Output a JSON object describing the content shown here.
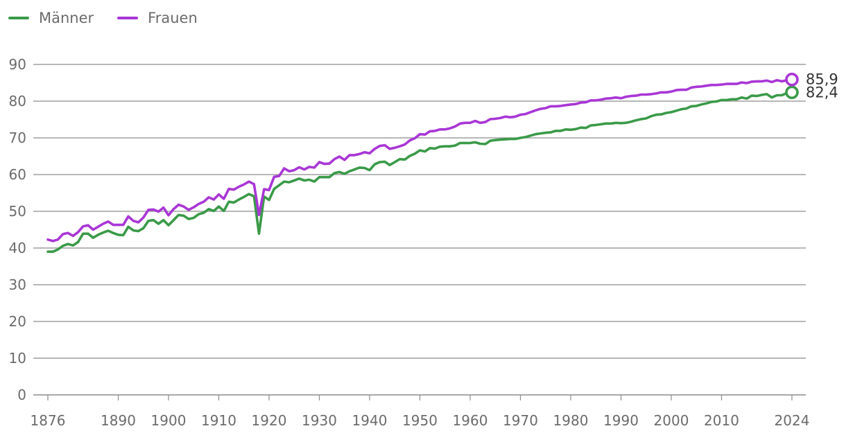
{
  "colors": {
    "maenner": "#3a9a48",
    "frauen": "#a936d6",
    "grid": "#8c8c8c",
    "axis": "#6b6b6b"
  },
  "legend": [
    {
      "label": "Männer",
      "color": "#3a9a48"
    },
    {
      "label": "Frauen",
      "color": "#a936d6"
    }
  ],
  "chart_data": {
    "type": "line",
    "x_ticks": [
      1876,
      1890,
      1900,
      1910,
      1920,
      1930,
      1940,
      1950,
      1960,
      1970,
      1980,
      1990,
      2000,
      2010,
      2024
    ],
    "y_ticks": [
      0,
      10,
      20,
      30,
      40,
      50,
      60,
      70,
      80,
      90
    ],
    "xlim": [
      1876,
      2024
    ],
    "ylim": [
      0,
      90
    ],
    "grid": true,
    "legend_position": "top-left",
    "series": [
      {
        "name": "Männer",
        "color": "#3a9a48",
        "end_label": "82,4",
        "points": [
          [
            1876,
            39.0
          ],
          [
            1877,
            39.0
          ],
          [
            1878,
            39.6
          ],
          [
            1879,
            40.6
          ],
          [
            1880,
            41.1
          ],
          [
            1881,
            40.7
          ],
          [
            1882,
            41.6
          ],
          [
            1883,
            43.9
          ],
          [
            1884,
            43.9
          ],
          [
            1885,
            42.8
          ],
          [
            1886,
            43.6
          ],
          [
            1887,
            44.2
          ],
          [
            1888,
            44.7
          ],
          [
            1889,
            44.1
          ],
          [
            1890,
            43.6
          ],
          [
            1891,
            43.5
          ],
          [
            1892,
            45.8
          ],
          [
            1893,
            44.8
          ],
          [
            1894,
            44.6
          ],
          [
            1895,
            45.4
          ],
          [
            1896,
            47.4
          ],
          [
            1897,
            47.6
          ],
          [
            1898,
            46.6
          ],
          [
            1899,
            47.6
          ],
          [
            1900,
            46.2
          ],
          [
            1901,
            47.6
          ],
          [
            1902,
            49.0
          ],
          [
            1903,
            48.8
          ],
          [
            1904,
            47.9
          ],
          [
            1905,
            48.2
          ],
          [
            1906,
            49.2
          ],
          [
            1907,
            49.6
          ],
          [
            1908,
            50.6
          ],
          [
            1909,
            50.1
          ],
          [
            1910,
            51.3
          ],
          [
            1911,
            50.1
          ],
          [
            1912,
            52.6
          ],
          [
            1913,
            52.4
          ],
          [
            1914,
            53.2
          ],
          [
            1915,
            53.9
          ],
          [
            1916,
            54.7
          ],
          [
            1917,
            54.1
          ],
          [
            1918,
            43.9
          ],
          [
            1919,
            54.0
          ],
          [
            1920,
            53.1
          ],
          [
            1921,
            56.1
          ],
          [
            1922,
            57.1
          ],
          [
            1923,
            58.1
          ],
          [
            1924,
            57.9
          ],
          [
            1925,
            58.4
          ],
          [
            1926,
            58.9
          ],
          [
            1927,
            58.4
          ],
          [
            1928,
            58.6
          ],
          [
            1929,
            58.1
          ],
          [
            1930,
            59.3
          ],
          [
            1931,
            59.3
          ],
          [
            1932,
            59.3
          ],
          [
            1933,
            60.4
          ],
          [
            1934,
            60.7
          ],
          [
            1935,
            60.2
          ],
          [
            1936,
            60.9
          ],
          [
            1937,
            61.4
          ],
          [
            1938,
            61.9
          ],
          [
            1939,
            61.8
          ],
          [
            1940,
            61.2
          ],
          [
            1941,
            62.8
          ],
          [
            1942,
            63.4
          ],
          [
            1943,
            63.5
          ],
          [
            1944,
            62.6
          ],
          [
            1945,
            63.4
          ],
          [
            1946,
            64.2
          ],
          [
            1947,
            64.1
          ],
          [
            1948,
            65.1
          ],
          [
            1949,
            65.7
          ],
          [
            1950,
            66.6
          ],
          [
            1951,
            66.3
          ],
          [
            1952,
            67.2
          ],
          [
            1953,
            67.1
          ],
          [
            1954,
            67.6
          ],
          [
            1955,
            67.7
          ],
          [
            1956,
            67.7
          ],
          [
            1957,
            67.9
          ],
          [
            1958,
            68.6
          ],
          [
            1959,
            68.6
          ],
          [
            1960,
            68.6
          ],
          [
            1961,
            68.8
          ],
          [
            1962,
            68.4
          ],
          [
            1963,
            68.3
          ],
          [
            1964,
            69.2
          ],
          [
            1965,
            69.4
          ],
          [
            1966,
            69.5
          ],
          [
            1967,
            69.6
          ],
          [
            1968,
            69.7
          ],
          [
            1969,
            69.7
          ],
          [
            1970,
            70.0
          ],
          [
            1971,
            70.2
          ],
          [
            1972,
            70.6
          ],
          [
            1973,
            71.0
          ],
          [
            1974,
            71.2
          ],
          [
            1975,
            71.4
          ],
          [
            1976,
            71.5
          ],
          [
            1977,
            71.9
          ],
          [
            1978,
            71.9
          ],
          [
            1979,
            72.3
          ],
          [
            1980,
            72.2
          ],
          [
            1981,
            72.4
          ],
          [
            1982,
            72.8
          ],
          [
            1983,
            72.7
          ],
          [
            1984,
            73.4
          ],
          [
            1985,
            73.5
          ],
          [
            1986,
            73.7
          ],
          [
            1987,
            73.9
          ],
          [
            1988,
            73.9
          ],
          [
            1989,
            74.1
          ],
          [
            1990,
            74.0
          ],
          [
            1991,
            74.1
          ],
          [
            1992,
            74.4
          ],
          [
            1993,
            74.8
          ],
          [
            1994,
            75.1
          ],
          [
            1995,
            75.3
          ],
          [
            1996,
            75.9
          ],
          [
            1997,
            76.3
          ],
          [
            1998,
            76.4
          ],
          [
            1999,
            76.8
          ],
          [
            2000,
            77.0
          ],
          [
            2001,
            77.4
          ],
          [
            2002,
            77.8
          ],
          [
            2003,
            78.0
          ],
          [
            2004,
            78.6
          ],
          [
            2005,
            78.7
          ],
          [
            2006,
            79.1
          ],
          [
            2007,
            79.4
          ],
          [
            2008,
            79.8
          ],
          [
            2009,
            79.9
          ],
          [
            2010,
            80.3
          ],
          [
            2011,
            80.3
          ],
          [
            2012,
            80.5
          ],
          [
            2013,
            80.5
          ],
          [
            2014,
            81.0
          ],
          [
            2015,
            80.7
          ],
          [
            2016,
            81.5
          ],
          [
            2017,
            81.4
          ],
          [
            2018,
            81.7
          ],
          [
            2019,
            81.9
          ],
          [
            2020,
            81.0
          ],
          [
            2021,
            81.6
          ],
          [
            2022,
            81.6
          ],
          [
            2023,
            82.2
          ],
          [
            2024,
            82.4
          ]
        ]
      },
      {
        "name": "Frauen",
        "color": "#a936d6",
        "end_label": "85,9",
        "points": [
          [
            1876,
            42.3
          ],
          [
            1877,
            41.9
          ],
          [
            1878,
            42.3
          ],
          [
            1879,
            43.8
          ],
          [
            1880,
            44.1
          ],
          [
            1881,
            43.3
          ],
          [
            1882,
            44.3
          ],
          [
            1883,
            45.9
          ],
          [
            1884,
            46.2
          ],
          [
            1885,
            45.0
          ],
          [
            1886,
            45.8
          ],
          [
            1887,
            46.6
          ],
          [
            1888,
            47.2
          ],
          [
            1889,
            46.3
          ],
          [
            1890,
            46.3
          ],
          [
            1891,
            46.3
          ],
          [
            1892,
            48.6
          ],
          [
            1893,
            47.4
          ],
          [
            1894,
            47.0
          ],
          [
            1895,
            48.3
          ],
          [
            1896,
            50.4
          ],
          [
            1897,
            50.5
          ],
          [
            1898,
            49.9
          ],
          [
            1899,
            51.0
          ],
          [
            1900,
            48.9
          ],
          [
            1901,
            50.6
          ],
          [
            1902,
            51.8
          ],
          [
            1903,
            51.3
          ],
          [
            1904,
            50.4
          ],
          [
            1905,
            51.1
          ],
          [
            1906,
            52.0
          ],
          [
            1907,
            52.6
          ],
          [
            1908,
            53.8
          ],
          [
            1909,
            53.2
          ],
          [
            1910,
            54.6
          ],
          [
            1911,
            53.4
          ],
          [
            1912,
            56.1
          ],
          [
            1913,
            55.9
          ],
          [
            1914,
            56.7
          ],
          [
            1915,
            57.3
          ],
          [
            1916,
            58.1
          ],
          [
            1917,
            57.4
          ],
          [
            1918,
            49.0
          ],
          [
            1919,
            56.0
          ],
          [
            1920,
            55.8
          ],
          [
            1921,
            59.4
          ],
          [
            1922,
            59.6
          ],
          [
            1923,
            61.7
          ],
          [
            1924,
            60.9
          ],
          [
            1925,
            61.2
          ],
          [
            1926,
            62.0
          ],
          [
            1927,
            61.4
          ],
          [
            1928,
            62.1
          ],
          [
            1929,
            61.9
          ],
          [
            1930,
            63.4
          ],
          [
            1931,
            62.9
          ],
          [
            1932,
            63.0
          ],
          [
            1933,
            64.2
          ],
          [
            1934,
            64.9
          ],
          [
            1935,
            64.0
          ],
          [
            1936,
            65.3
          ],
          [
            1937,
            65.3
          ],
          [
            1938,
            65.6
          ],
          [
            1939,
            66.1
          ],
          [
            1940,
            65.8
          ],
          [
            1941,
            67.0
          ],
          [
            1942,
            67.8
          ],
          [
            1943,
            68.0
          ],
          [
            1944,
            67.0
          ],
          [
            1945,
            67.3
          ],
          [
            1946,
            67.7
          ],
          [
            1947,
            68.2
          ],
          [
            1948,
            69.3
          ],
          [
            1949,
            69.9
          ],
          [
            1950,
            71.0
          ],
          [
            1951,
            70.9
          ],
          [
            1952,
            71.8
          ],
          [
            1953,
            71.9
          ],
          [
            1954,
            72.3
          ],
          [
            1955,
            72.3
          ],
          [
            1956,
            72.6
          ],
          [
            1957,
            73.1
          ],
          [
            1958,
            73.9
          ],
          [
            1959,
            74.1
          ],
          [
            1960,
            74.1
          ],
          [
            1961,
            74.6
          ],
          [
            1962,
            74.1
          ],
          [
            1963,
            74.3
          ],
          [
            1964,
            75.1
          ],
          [
            1965,
            75.2
          ],
          [
            1966,
            75.4
          ],
          [
            1967,
            75.8
          ],
          [
            1968,
            75.6
          ],
          [
            1969,
            75.8
          ],
          [
            1970,
            76.3
          ],
          [
            1971,
            76.5
          ],
          [
            1972,
            77.0
          ],
          [
            1973,
            77.5
          ],
          [
            1974,
            77.9
          ],
          [
            1975,
            78.1
          ],
          [
            1976,
            78.6
          ],
          [
            1977,
            78.6
          ],
          [
            1978,
            78.7
          ],
          [
            1979,
            78.9
          ],
          [
            1980,
            79.1
          ],
          [
            1981,
            79.2
          ],
          [
            1982,
            79.6
          ],
          [
            1983,
            79.7
          ],
          [
            1984,
            80.2
          ],
          [
            1985,
            80.2
          ],
          [
            1986,
            80.4
          ],
          [
            1987,
            80.7
          ],
          [
            1988,
            80.8
          ],
          [
            1989,
            81.0
          ],
          [
            1990,
            80.8
          ],
          [
            1991,
            81.2
          ],
          [
            1992,
            81.4
          ],
          [
            1993,
            81.5
          ],
          [
            1994,
            81.8
          ],
          [
            1995,
            81.8
          ],
          [
            1996,
            81.9
          ],
          [
            1997,
            82.1
          ],
          [
            1998,
            82.4
          ],
          [
            1999,
            82.4
          ],
          [
            2000,
            82.6
          ],
          [
            2001,
            83.0
          ],
          [
            2002,
            83.1
          ],
          [
            2003,
            83.1
          ],
          [
            2004,
            83.7
          ],
          [
            2005,
            83.9
          ],
          [
            2006,
            84.0
          ],
          [
            2007,
            84.2
          ],
          [
            2008,
            84.4
          ],
          [
            2009,
            84.4
          ],
          [
            2010,
            84.5
          ],
          [
            2011,
            84.7
          ],
          [
            2012,
            84.7
          ],
          [
            2013,
            84.7
          ],
          [
            2014,
            85.1
          ],
          [
            2015,
            84.9
          ],
          [
            2016,
            85.3
          ],
          [
            2017,
            85.4
          ],
          [
            2018,
            85.4
          ],
          [
            2019,
            85.6
          ],
          [
            2020,
            85.2
          ],
          [
            2021,
            85.7
          ],
          [
            2022,
            85.4
          ],
          [
            2023,
            85.7
          ],
          [
            2024,
            85.9
          ]
        ]
      }
    ]
  }
}
